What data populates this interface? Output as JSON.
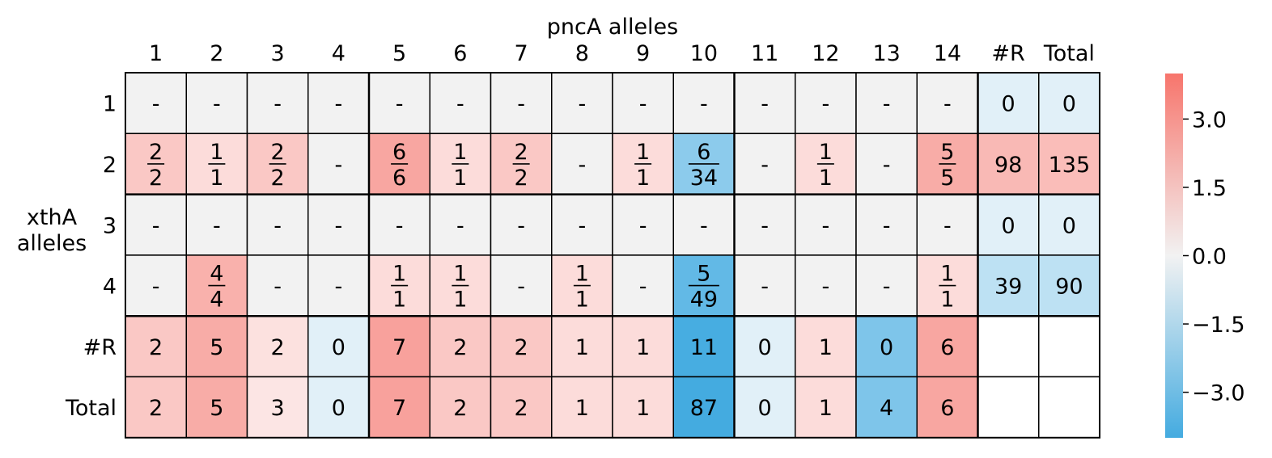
{
  "chart_data": {
    "type": "heatmap",
    "title": "pncA alleles",
    "ylabel_lines": [
      "xthA",
      "alleles"
    ],
    "column_labels": [
      "1",
      "2",
      "3",
      "4",
      "5",
      "6",
      "7",
      "8",
      "9",
      "10",
      "11",
      "12",
      "13",
      "14",
      "#R",
      "Total"
    ],
    "row_labels": [
      "1",
      "2",
      "3",
      "4",
      "#R",
      "Total"
    ],
    "cells": [
      [
        {
          "t": "-",
          "c": "#f2f2f2"
        },
        {
          "t": "-",
          "c": "#f2f2f2"
        },
        {
          "t": "-",
          "c": "#f2f2f2"
        },
        {
          "t": "-",
          "c": "#f2f2f2"
        },
        {
          "t": "-",
          "c": "#f2f2f2"
        },
        {
          "t": "-",
          "c": "#f2f2f2"
        },
        {
          "t": "-",
          "c": "#f2f2f2"
        },
        {
          "t": "-",
          "c": "#f2f2f2"
        },
        {
          "t": "-",
          "c": "#f2f2f2"
        },
        {
          "t": "-",
          "c": "#f2f2f2"
        },
        {
          "t": "-",
          "c": "#f2f2f2"
        },
        {
          "t": "-",
          "c": "#f2f2f2"
        },
        {
          "t": "-",
          "c": "#f2f2f2"
        },
        {
          "t": "-",
          "c": "#f2f2f2"
        },
        {
          "t": "0",
          "c": "#e1f0f8"
        },
        {
          "t": "0",
          "c": "#e1f0f8"
        }
      ],
      [
        {
          "n": "2",
          "d": "2",
          "c": "#fac8c5"
        },
        {
          "n": "1",
          "d": "1",
          "c": "#fcdcda"
        },
        {
          "n": "2",
          "d": "2",
          "c": "#fac8c5"
        },
        {
          "t": "-",
          "c": "#f2f2f2"
        },
        {
          "n": "6",
          "d": "6",
          "c": "#f8a6a1"
        },
        {
          "n": "1",
          "d": "1",
          "c": "#fcdcda"
        },
        {
          "n": "2",
          "d": "2",
          "c": "#fac8c5"
        },
        {
          "t": "-",
          "c": "#f2f2f2"
        },
        {
          "n": "1",
          "d": "1",
          "c": "#fcdcda"
        },
        {
          "n": "6",
          "d": "34",
          "c": "#8ccbec"
        },
        {
          "t": "-",
          "c": "#f2f2f2"
        },
        {
          "n": "1",
          "d": "1",
          "c": "#fcdcda"
        },
        {
          "t": "-",
          "c": "#f2f2f2"
        },
        {
          "n": "5",
          "d": "5",
          "c": "#f8aca7"
        },
        {
          "t": "98",
          "c": "#f9b9b5"
        },
        {
          "t": "135",
          "c": "#fabdb9"
        }
      ],
      [
        {
          "t": "-",
          "c": "#f2f2f2"
        },
        {
          "t": "-",
          "c": "#f2f2f2"
        },
        {
          "t": "-",
          "c": "#f2f2f2"
        },
        {
          "t": "-",
          "c": "#f2f2f2"
        },
        {
          "t": "-",
          "c": "#f2f2f2"
        },
        {
          "t": "-",
          "c": "#f2f2f2"
        },
        {
          "t": "-",
          "c": "#f2f2f2"
        },
        {
          "t": "-",
          "c": "#f2f2f2"
        },
        {
          "t": "-",
          "c": "#f2f2f2"
        },
        {
          "t": "-",
          "c": "#f2f2f2"
        },
        {
          "t": "-",
          "c": "#f2f2f2"
        },
        {
          "t": "-",
          "c": "#f2f2f2"
        },
        {
          "t": "-",
          "c": "#f2f2f2"
        },
        {
          "t": "-",
          "c": "#f2f2f2"
        },
        {
          "t": "0",
          "c": "#e1f0f8"
        },
        {
          "t": "0",
          "c": "#e1f0f8"
        }
      ],
      [
        {
          "t": "-",
          "c": "#f2f2f2"
        },
        {
          "n": "4",
          "d": "4",
          "c": "#f9b1ac"
        },
        {
          "t": "-",
          "c": "#f2f2f2"
        },
        {
          "t": "-",
          "c": "#f2f2f2"
        },
        {
          "n": "1",
          "d": "1",
          "c": "#fcdcda"
        },
        {
          "n": "1",
          "d": "1",
          "c": "#fcdcda"
        },
        {
          "t": "-",
          "c": "#f2f2f2"
        },
        {
          "n": "1",
          "d": "1",
          "c": "#fcdcda"
        },
        {
          "t": "-",
          "c": "#f2f2f2"
        },
        {
          "n": "5",
          "d": "49",
          "c": "#62b9e6"
        },
        {
          "t": "-",
          "c": "#f2f2f2"
        },
        {
          "t": "-",
          "c": "#f2f2f2"
        },
        {
          "t": "-",
          "c": "#f2f2f2"
        },
        {
          "n": "1",
          "d": "1",
          "c": "#fcdcda"
        },
        {
          "t": "39",
          "c": "#bde1f3"
        },
        {
          "t": "90",
          "c": "#bde1f3"
        }
      ],
      [
        {
          "t": "2",
          "c": "#fac8c5"
        },
        {
          "t": "5",
          "c": "#f8aca7"
        },
        {
          "t": "2",
          "c": "#fce1df"
        },
        {
          "t": "0",
          "c": "#e1f0f8"
        },
        {
          "t": "7",
          "c": "#f8a19c"
        },
        {
          "t": "2",
          "c": "#fac8c5"
        },
        {
          "t": "2",
          "c": "#fac8c5"
        },
        {
          "t": "1",
          "c": "#fcdcda"
        },
        {
          "t": "1",
          "c": "#fcdcda"
        },
        {
          "t": "11",
          "c": "#47ade1"
        },
        {
          "t": "0",
          "c": "#e1f0f8"
        },
        {
          "t": "1",
          "c": "#fcdcda"
        },
        {
          "t": "0",
          "c": "#7ec5ea"
        },
        {
          "t": "6",
          "c": "#f8a6a1"
        },
        {
          "t": "",
          "c": "#ffffff"
        },
        {
          "t": "",
          "c": "#ffffff"
        }
      ],
      [
        {
          "t": "2",
          "c": "#fac8c5"
        },
        {
          "t": "5",
          "c": "#f8aca7"
        },
        {
          "t": "3",
          "c": "#fce5e4"
        },
        {
          "t": "0",
          "c": "#e1f0f8"
        },
        {
          "t": "7",
          "c": "#f8a19c"
        },
        {
          "t": "2",
          "c": "#fac8c5"
        },
        {
          "t": "2",
          "c": "#fac8c5"
        },
        {
          "t": "1",
          "c": "#fcdcda"
        },
        {
          "t": "1",
          "c": "#fcdcda"
        },
        {
          "t": "87",
          "c": "#44abe0"
        },
        {
          "t": "0",
          "c": "#e1f0f8"
        },
        {
          "t": "1",
          "c": "#fcdcda"
        },
        {
          "t": "4",
          "c": "#7ec5ea"
        },
        {
          "t": "6",
          "c": "#f8a6a1"
        },
        {
          "t": "",
          "c": "#ffffff"
        },
        {
          "t": "",
          "c": "#ffffff"
        }
      ]
    ],
    "colorbar": {
      "range": [
        -4,
        4
      ],
      "ticks": [
        3.0,
        1.5,
        0.0,
        -1.5,
        -3.0
      ],
      "tick_labels": [
        "3.0",
        "1.5",
        "0.0",
        "−1.5",
        "−3.0"
      ],
      "colors": [
        "#44abe0",
        "#f2f2f2",
        "#f7756c"
      ]
    },
    "grid": true
  }
}
